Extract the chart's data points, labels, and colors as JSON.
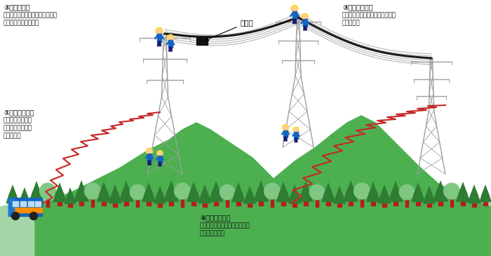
{
  "bg_color": "#ffffff",
  "hill_color_dark": "#4caf50",
  "hill_color_mid": "#66bb6a",
  "hill_color_light": "#a5d6a7",
  "tree_trunk_color": "#b71c1c",
  "tree_foliage_dark": "#2e7d32",
  "tree_foliage_light": "#81c784",
  "tower_color": "#9e9e9e",
  "cable_color": "#9e9e9e",
  "ground_wire_color": "#1a1a1a",
  "camera_color": "#111111",
  "worker_helmet": "#fdd835",
  "worker_body": "#1565c0",
  "worker_skin": "#ffccbc",
  "red_path_color": "#c62828",
  "bus_blue": "#1565c0",
  "bus_orange": "#ff8f00",
  "bus_window": "#bbdefb",
  "text_color": "#111111",
  "ann1_title": "②自走器設置",
  "ann1_line1": "鉄塔に昇り、自走するカメラを設",
  "ann1_line2": "置、点検を開始する。",
  "ann2_title": "③自走器の回収",
  "ann2_line1": "自走後のカメラを反対側鉄塔にて",
  "ann2_line2": "回収する。",
  "ann3_title": "①巡視路を歩行",
  "ann3_line1": "点検箇所の鉄塔ま",
  "ann3_line2": "で、徒歩により山",
  "ann3_line3": "道を移動。",
  "ann4_title": "④巡視路を歩行",
  "ann4_line1": "点検箇所の鉄塔から、徒歩によ",
  "ann4_line2": "り山道を移動。",
  "camera_label": "カメラ"
}
